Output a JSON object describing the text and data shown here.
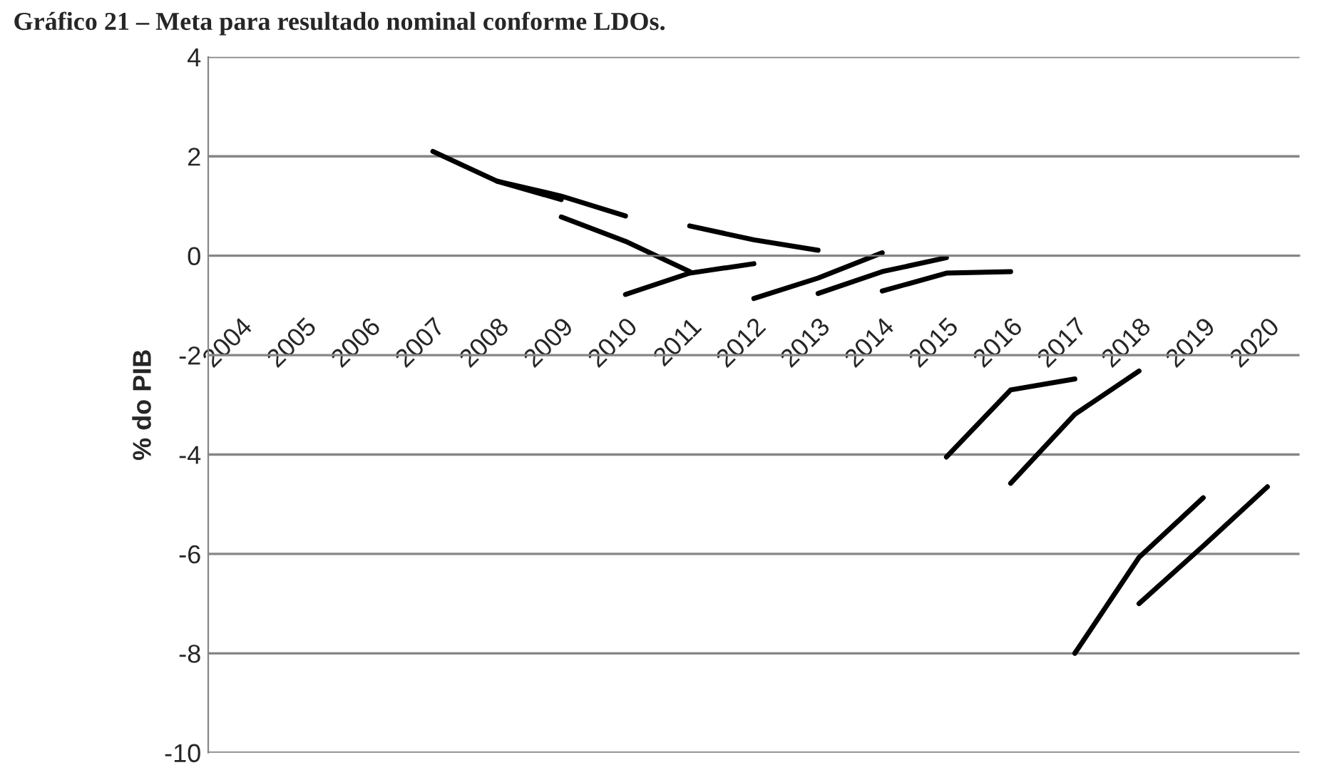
{
  "chart_data": {
    "type": "line",
    "title": "Gráfico 21 – Meta para resultado nominal conforme LDOs.",
    "ylabel": "% do PIB",
    "categories": [
      "2004",
      "2005",
      "2006",
      "2007",
      "2008",
      "2009",
      "2010",
      "2011",
      "2012",
      "2013",
      "2014",
      "2015",
      "2016",
      "2017",
      "2018",
      "2019",
      "2020"
    ],
    "series": [
      {
        "color": "#000000",
        "values": [
          null,
          null,
          null,
          2.1,
          1.5,
          1.13,
          null,
          null,
          null,
          null,
          null,
          null,
          null,
          null,
          null,
          null,
          null
        ]
      },
      {
        "color": "#000000",
        "values": [
          null,
          null,
          null,
          null,
          1.5,
          1.2,
          0.8,
          null,
          null,
          null,
          null,
          null,
          null,
          null,
          null,
          null,
          null
        ]
      },
      {
        "color": "#000000",
        "values": [
          null,
          null,
          null,
          null,
          null,
          0.78,
          0.29,
          -0.32,
          null,
          null,
          null,
          null,
          null,
          null,
          null,
          null,
          null
        ]
      },
      {
        "color": "#000000",
        "values": [
          null,
          null,
          null,
          null,
          null,
          null,
          -0.78,
          -0.35,
          -0.16,
          null,
          null,
          null,
          null,
          null,
          null,
          null,
          null
        ]
      },
      {
        "color": "#000000",
        "values": [
          null,
          null,
          null,
          null,
          null,
          null,
          null,
          0.6,
          0.32,
          0.11,
          null,
          null,
          null,
          null,
          null,
          null,
          null
        ]
      },
      {
        "color": "#000000",
        "values": [
          null,
          null,
          null,
          null,
          null,
          null,
          null,
          null,
          -0.86,
          -0.45,
          0.06,
          null,
          null,
          null,
          null,
          null,
          null
        ]
      },
      {
        "color": "#000000",
        "values": [
          null,
          null,
          null,
          null,
          null,
          null,
          null,
          null,
          null,
          -0.76,
          -0.32,
          -0.04,
          null,
          null,
          null,
          null,
          null
        ]
      },
      {
        "color": "#000000",
        "values": [
          null,
          null,
          null,
          null,
          null,
          null,
          null,
          null,
          null,
          null,
          -0.71,
          -0.35,
          -0.32,
          null,
          null,
          null,
          null
        ]
      },
      {
        "color": "#000000",
        "values": [
          null,
          null,
          null,
          null,
          null,
          null,
          null,
          null,
          null,
          null,
          null,
          -4.05,
          -2.7,
          -2.48,
          null,
          null,
          null
        ]
      },
      {
        "color": "#000000",
        "values": [
          null,
          null,
          null,
          null,
          null,
          null,
          null,
          null,
          null,
          null,
          null,
          null,
          -4.58,
          -3.19,
          -2.32,
          null,
          null
        ]
      },
      {
        "color": "#000000",
        "values": [
          null,
          null,
          null,
          null,
          null,
          null,
          null,
          null,
          null,
          null,
          null,
          null,
          null,
          -8.0,
          -6.07,
          -4.87,
          null
        ]
      },
      {
        "color": "#000000",
        "values": [
          null,
          null,
          null,
          null,
          null,
          null,
          null,
          null,
          null,
          null,
          null,
          null,
          null,
          null,
          -7.0,
          -5.84,
          -4.65
        ]
      }
    ],
    "ylim": [
      -10,
      4
    ],
    "yticks": [
      -10,
      -8,
      -6,
      -4,
      -2,
      0,
      2,
      4
    ],
    "grid": "y",
    "legend": false,
    "marker": "none",
    "line_style": "solid"
  }
}
